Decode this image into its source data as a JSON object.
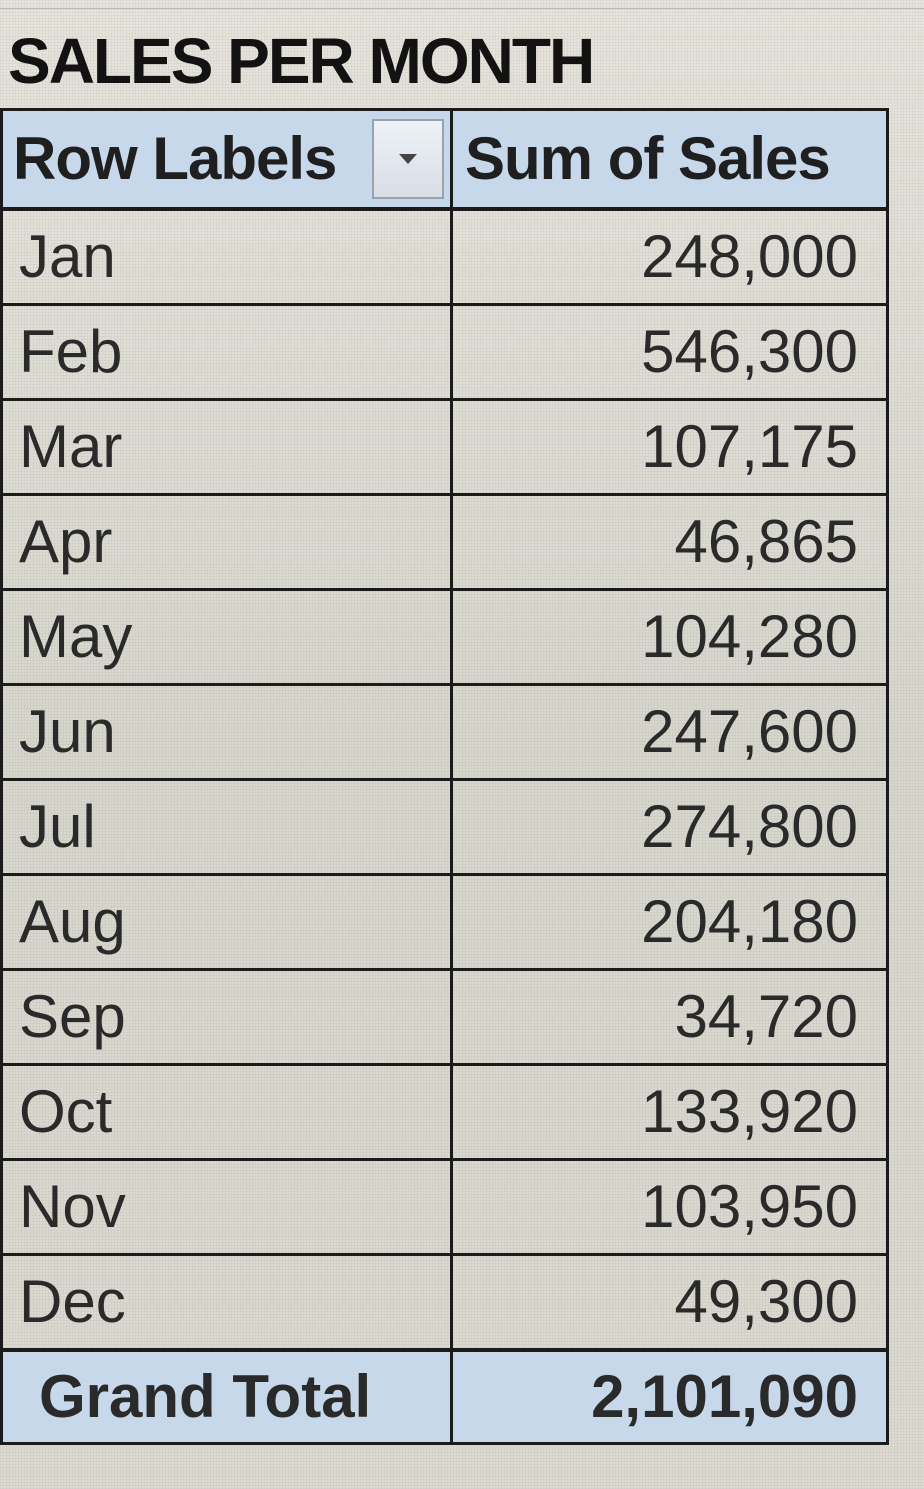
{
  "sheet": {
    "title": "SALES PER MONTH"
  },
  "pivot": {
    "headers": {
      "row_labels": "Row Labels",
      "sum_of_sales": "Sum of Sales"
    },
    "rows": [
      {
        "month": "Jan",
        "sales": "248,000"
      },
      {
        "month": "Feb",
        "sales": "546,300"
      },
      {
        "month": "Mar",
        "sales": "107,175"
      },
      {
        "month": "Apr",
        "sales": "46,865"
      },
      {
        "month": "May",
        "sales": "104,280"
      },
      {
        "month": "Jun",
        "sales": "247,600"
      },
      {
        "month": "Jul",
        "sales": "274,800"
      },
      {
        "month": "Aug",
        "sales": "204,180"
      },
      {
        "month": "Sep",
        "sales": "34,720"
      },
      {
        "month": "Oct",
        "sales": "133,920"
      },
      {
        "month": "Nov",
        "sales": "103,950"
      },
      {
        "month": "Dec",
        "sales": "49,300"
      }
    ],
    "total": {
      "label": "Grand Total",
      "sales": "2,101,090"
    }
  },
  "colors": {
    "header_fill": "#c7d8ea",
    "border": "#1b1b1b",
    "background": "#d9d8cf"
  },
  "icons": {
    "filter": "chevron-down-icon"
  }
}
